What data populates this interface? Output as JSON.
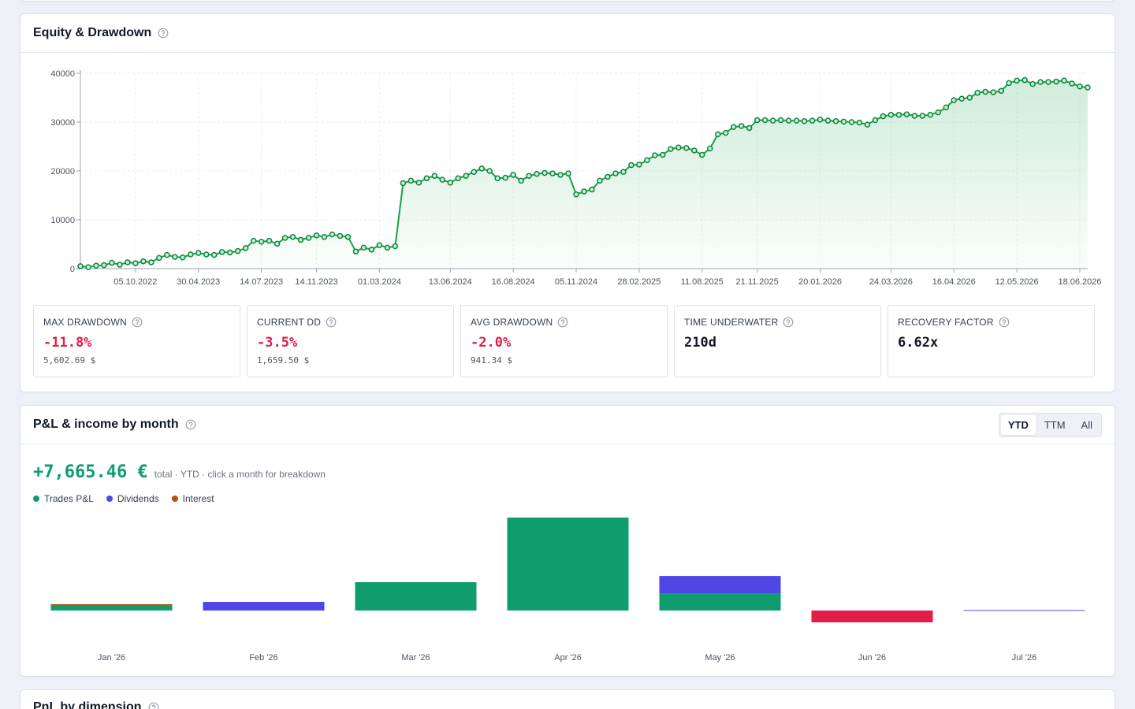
{
  "equity_panel": {
    "title": "Equity & Drawdown"
  },
  "kpis": [
    {
      "label": "MAX DRAWDOWN",
      "value": "-11.8%",
      "sub": "5,602.69 $",
      "tone": "negative"
    },
    {
      "label": "CURRENT DD",
      "value": "-3.5%",
      "sub": "1,659.50 $",
      "tone": "negative"
    },
    {
      "label": "AVG DRAWDOWN",
      "value": "-2.0%",
      "sub": "941.34 $",
      "tone": "negative"
    },
    {
      "label": "TIME UNDERWATER",
      "value": "210d",
      "tone": "neutral"
    },
    {
      "label": "RECOVERY FACTOR",
      "value": "6.62x",
      "tone": "neutral"
    }
  ],
  "pnl_panel": {
    "title": "P&L & income by month",
    "tabs": [
      "YTD",
      "TTM",
      "All"
    ],
    "active_tab": 0,
    "total": "+7,665.46 €",
    "total_note": "total · YTD · click a month for breakdown"
  },
  "dimension_panel": {
    "title": "PnL by dimension"
  },
  "chart_data": [
    {
      "type": "line",
      "color": "#16a34a",
      "area": true,
      "markers": true,
      "grid": true,
      "ylim": [
        0,
        40000
      ],
      "yticks": [
        0,
        10000,
        20000,
        30000,
        40000
      ],
      "categories": [
        null,
        null,
        null,
        null,
        null,
        null,
        null,
        "05.10.2022",
        null,
        null,
        null,
        null,
        null,
        null,
        null,
        "30.04.2023",
        null,
        null,
        null,
        null,
        null,
        null,
        null,
        "14.07.2023",
        null,
        null,
        null,
        null,
        null,
        null,
        "14.11.2023",
        null,
        null,
        null,
        null,
        null,
        null,
        null,
        "01.03.2024",
        null,
        null,
        null,
        null,
        null,
        null,
        null,
        null,
        "13.06.2024",
        null,
        null,
        null,
        null,
        null,
        null,
        null,
        "16.08.2024",
        null,
        null,
        null,
        null,
        null,
        null,
        null,
        "05.11.2024",
        null,
        null,
        null,
        null,
        null,
        null,
        null,
        "28.02.2025",
        null,
        null,
        null,
        null,
        null,
        null,
        null,
        "11.08.2025",
        null,
        null,
        null,
        null,
        null,
        null,
        "21.11.2025",
        null,
        null,
        null,
        null,
        null,
        null,
        null,
        "20.01.2026",
        null,
        null,
        null,
        null,
        null,
        null,
        null,
        null,
        "24.03.2026",
        null,
        null,
        null,
        null,
        null,
        null,
        null,
        "16.04.2026",
        null,
        null,
        null,
        null,
        null,
        null,
        null,
        "12.05.2026",
        null,
        null,
        null,
        null,
        null,
        null,
        null,
        "18.06.2026",
        null
      ],
      "values": [
        500,
        300,
        600,
        700,
        1200,
        800,
        1300,
        1100,
        1500,
        1300,
        2200,
        2800,
        2400,
        2300,
        2900,
        3200,
        2900,
        2800,
        3400,
        3300,
        3600,
        4200,
        5700,
        5500,
        5700,
        5100,
        6300,
        6500,
        5900,
        6300,
        6800,
        6500,
        7000,
        6700,
        6500,
        3500,
        4300,
        3900,
        4800,
        4300,
        4600,
        17500,
        18000,
        17600,
        18500,
        19000,
        18200,
        17600,
        18500,
        19000,
        19800,
        20500,
        20000,
        18500,
        18600,
        19200,
        18000,
        19000,
        19400,
        19600,
        19500,
        19200,
        19500,
        15200,
        15800,
        16200,
        18000,
        18800,
        19500,
        19800,
        21200,
        21300,
        22200,
        23200,
        23300,
        24500,
        24800,
        24700,
        24200,
        23300,
        24600,
        27500,
        27800,
        29000,
        29200,
        28800,
        30400,
        30400,
        30300,
        30400,
        30300,
        30300,
        30200,
        30300,
        30500,
        30300,
        30200,
        30100,
        30000,
        29900,
        29500,
        30400,
        31200,
        31500,
        31500,
        31600,
        31300,
        31300,
        31500,
        32000,
        33000,
        34500,
        34800,
        35000,
        36000,
        36200,
        36100,
        36400,
        38000,
        38500,
        38600,
        37800,
        38200,
        38200,
        38300,
        38500,
        37900,
        37300,
        37100
      ]
    },
    {
      "type": "bar",
      "stacked": true,
      "negative_color": "#e11d48",
      "categories": [
        "Jan '26",
        "Feb '26",
        "Mar '26",
        "Apr '26",
        "May '26",
        "Jun '26",
        "Jul '26"
      ],
      "series": [
        {
          "name": "Trades P&L",
          "color": "#0f9d6e",
          "values": [
            265,
            0,
            1360,
            4460,
            830,
            -567,
            0
          ]
        },
        {
          "name": "Dividends",
          "color": "#4f46e5",
          "values": [
            0,
            415,
            0,
            0,
            830,
            0,
            34
          ]
        },
        {
          "name": "Interest",
          "color": "#b45309",
          "values": [
            38,
            0,
            0,
            0,
            0,
            0,
            0
          ]
        }
      ]
    }
  ]
}
